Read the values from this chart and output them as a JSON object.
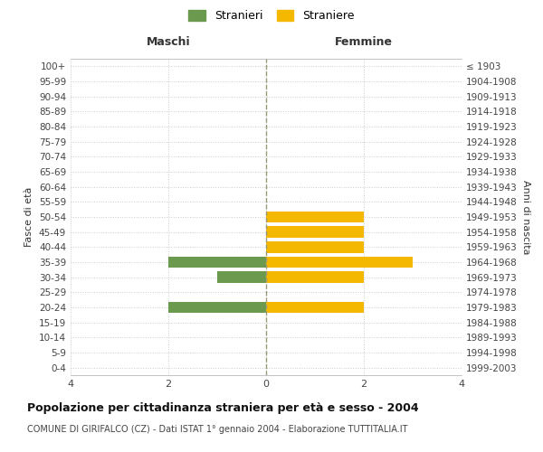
{
  "age_groups": [
    "0-4",
    "5-9",
    "10-14",
    "15-19",
    "20-24",
    "25-29",
    "30-34",
    "35-39",
    "40-44",
    "45-49",
    "50-54",
    "55-59",
    "60-64",
    "65-69",
    "70-74",
    "75-79",
    "80-84",
    "85-89",
    "90-94",
    "95-99",
    "100+"
  ],
  "birth_years": [
    "1999-2003",
    "1994-1998",
    "1989-1993",
    "1984-1988",
    "1979-1983",
    "1974-1978",
    "1969-1973",
    "1964-1968",
    "1959-1963",
    "1954-1958",
    "1949-1953",
    "1944-1948",
    "1939-1943",
    "1934-1938",
    "1929-1933",
    "1924-1928",
    "1919-1923",
    "1914-1918",
    "1909-1913",
    "1904-1908",
    "≤ 1903"
  ],
  "maschi": [
    0,
    0,
    0,
    0,
    2,
    0,
    1,
    2,
    0,
    0,
    0,
    0,
    0,
    0,
    0,
    0,
    0,
    0,
    0,
    0,
    0
  ],
  "femmine": [
    0,
    0,
    0,
    0,
    2,
    0,
    2,
    3,
    2,
    2,
    2,
    0,
    0,
    0,
    0,
    0,
    0,
    0,
    0,
    0,
    0
  ],
  "maschi_color": "#6b9a4e",
  "femmine_color": "#f5b800",
  "xlim": 4,
  "title": "Popolazione per cittadinanza straniera per età e sesso - 2004",
  "subtitle": "COMUNE DI GIRIFALCO (CZ) - Dati ISTAT 1° gennaio 2004 - Elaborazione TUTTITALIA.IT",
  "ylabel_left": "Fasce di età",
  "ylabel_right": "Anni di nascita",
  "xlabel_maschi": "Maschi",
  "xlabel_femmine": "Femmine",
  "legend_stranieri": "Stranieri",
  "legend_straniere": "Straniere",
  "bg_color": "#ffffff",
  "grid_color": "#cccccc",
  "center_line_color": "#999977",
  "xticks": [
    -4,
    -2,
    0,
    2,
    4
  ],
  "xticklabels": [
    "4",
    "2",
    "0",
    "2",
    "4"
  ]
}
